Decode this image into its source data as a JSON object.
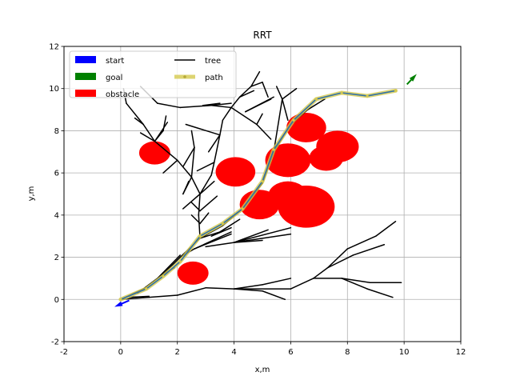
{
  "chart_data": {
    "type": "line",
    "title": "RRT",
    "xlabel": "x,m",
    "ylabel": "y,m",
    "xlim": [
      -2,
      12
    ],
    "ylim": [
      -2,
      12
    ],
    "xticks": [
      "-2",
      "0",
      "2",
      "4",
      "6",
      "8",
      "10",
      "12"
    ],
    "yticks": [
      "-2",
      "0",
      "2",
      "4",
      "6",
      "8",
      "10",
      "12"
    ],
    "grid": true,
    "legend": {
      "placement": "top-left",
      "entries": [
        {
          "name": "start",
          "color": "#0000ff",
          "kind": "patch"
        },
        {
          "name": "goal",
          "color": "#008000",
          "kind": "patch"
        },
        {
          "name": "obstacle",
          "color": "#ff0000",
          "kind": "patch"
        },
        {
          "name": "tree",
          "color": "#000000",
          "kind": "line"
        },
        {
          "name": "path",
          "color": "#d4c94e",
          "kind": "line"
        }
      ]
    },
    "start": {
      "x": 0.3,
      "y": -0.05,
      "heading_deg": 210,
      "color": "#0000ff"
    },
    "goal": {
      "x": 10.1,
      "y": 10.2,
      "heading_deg": 55,
      "color": "#008000"
    },
    "obstacles": [
      {
        "x": 1.2,
        "y": 6.95,
        "r": 0.55
      },
      {
        "x": 2.55,
        "y": 1.25,
        "r": 0.55
      },
      {
        "x": 4.05,
        "y": 6.05,
        "r": 0.7
      },
      {
        "x": 4.9,
        "y": 4.5,
        "r": 0.7
      },
      {
        "x": 5.9,
        "y": 6.6,
        "r": 0.8
      },
      {
        "x": 5.9,
        "y": 4.9,
        "r": 0.7
      },
      {
        "x": 6.55,
        "y": 8.15,
        "r": 0.7
      },
      {
        "x": 6.55,
        "y": 4.4,
        "r": 1.0
      },
      {
        "x": 7.25,
        "y": 6.7,
        "r": 0.6
      },
      {
        "x": 7.65,
        "y": 7.25,
        "r": 0.75
      }
    ],
    "obstacle_color": "#ff0000",
    "tree_color": "#000000",
    "tree_edges": [
      [
        [
          0,
          0
        ],
        [
          0.8,
          0.5
        ]
      ],
      [
        [
          0.8,
          0.5
        ],
        [
          1.5,
          1.2
        ]
      ],
      [
        [
          1.5,
          1.2
        ],
        [
          2.1,
          2.0
        ]
      ],
      [
        [
          2.1,
          2.0
        ],
        [
          2.8,
          2.9
        ]
      ],
      [
        [
          2.8,
          2.9
        ],
        [
          3.6,
          3.5
        ]
      ],
      [
        [
          3.6,
          3.5
        ],
        [
          4.3,
          4.3
        ]
      ],
      [
        [
          4.3,
          4.3
        ],
        [
          5.0,
          5.5
        ]
      ],
      [
        [
          5.0,
          5.5
        ],
        [
          5.4,
          7.0
        ]
      ],
      [
        [
          5.4,
          7.0
        ],
        [
          6.0,
          8.3
        ]
      ],
      [
        [
          6.0,
          8.3
        ],
        [
          6.6,
          9.0
        ]
      ],
      [
        [
          6.6,
          9.0
        ],
        [
          7.2,
          9.5
        ]
      ],
      [
        [
          0,
          0
        ],
        [
          1.0,
          0.1
        ]
      ],
      [
        [
          1.0,
          0.1
        ],
        [
          2.0,
          0.2
        ]
      ],
      [
        [
          2.0,
          0.2
        ],
        [
          3.0,
          0.55
        ]
      ],
      [
        [
          3.0,
          0.55
        ],
        [
          4.0,
          0.5
        ]
      ],
      [
        [
          4.0,
          0.5
        ],
        [
          5.0,
          0.4
        ]
      ],
      [
        [
          5.0,
          0.4
        ],
        [
          5.8,
          0.0
        ]
      ],
      [
        [
          4.0,
          0.5
        ],
        [
          5.0,
          0.7
        ]
      ],
      [
        [
          5.0,
          0.7
        ],
        [
          6.0,
          1.0
        ]
      ],
      [
        [
          4.0,
          0.5
        ],
        [
          6.0,
          0.5
        ]
      ],
      [
        [
          6.0,
          0.5
        ],
        [
          6.8,
          1.0
        ]
      ],
      [
        [
          6.8,
          1.0
        ],
        [
          7.3,
          1.5
        ]
      ],
      [
        [
          7.3,
          1.5
        ],
        [
          8.0,
          2.4
        ]
      ],
      [
        [
          8.0,
          2.4
        ],
        [
          9.0,
          3.0
        ]
      ],
      [
        [
          9.0,
          3.0
        ],
        [
          9.7,
          3.7
        ]
      ],
      [
        [
          7.3,
          1.5
        ],
        [
          8.2,
          2.1
        ]
      ],
      [
        [
          8.2,
          2.1
        ],
        [
          9.3,
          2.6
        ]
      ],
      [
        [
          6.8,
          1.0
        ],
        [
          7.8,
          1.0
        ]
      ],
      [
        [
          7.8,
          1.0
        ],
        [
          8.8,
          0.8
        ]
      ],
      [
        [
          8.8,
          0.8
        ],
        [
          9.9,
          0.8
        ]
      ],
      [
        [
          7.8,
          1.0
        ],
        [
          8.7,
          0.5
        ]
      ],
      [
        [
          8.7,
          0.5
        ],
        [
          9.6,
          0.1
        ]
      ],
      [
        [
          0.3,
          0.1
        ],
        [
          1.0,
          0.15
        ]
      ],
      [
        [
          2.8,
          2.9
        ],
        [
          3.5,
          3.2
        ]
      ],
      [
        [
          3.5,
          3.2
        ],
        [
          4.2,
          3.8
        ]
      ],
      [
        [
          3.0,
          2.5
        ],
        [
          4.0,
          2.7
        ]
      ],
      [
        [
          4.0,
          2.7
        ],
        [
          5.0,
          2.8
        ]
      ],
      [
        [
          4.0,
          2.7
        ],
        [
          5.2,
          3.3
        ]
      ],
      [
        [
          4.0,
          2.7
        ],
        [
          6.0,
          3.1
        ]
      ],
      [
        [
          4.0,
          2.7
        ],
        [
          6.0,
          3.4
        ]
      ],
      [
        [
          3.2,
          3.0
        ],
        [
          3.9,
          3.4
        ]
      ],
      [
        [
          0.6,
          0.3
        ],
        [
          1.3,
          1.0
        ]
      ],
      [
        [
          1.3,
          1.0
        ],
        [
          2.1,
          2.1
        ]
      ],
      [
        [
          2.8,
          2.9
        ],
        [
          2.75,
          4.0
        ]
      ],
      [
        [
          2.75,
          4.0
        ],
        [
          2.8,
          5.0
        ]
      ],
      [
        [
          2.8,
          5.0
        ],
        [
          2.5,
          5.8
        ]
      ],
      [
        [
          2.5,
          5.8
        ],
        [
          2.0,
          6.6
        ]
      ],
      [
        [
          2.0,
          6.6
        ],
        [
          1.2,
          7.5
        ]
      ],
      [
        [
          1.2,
          7.5
        ],
        [
          0.8,
          8.3
        ]
      ],
      [
        [
          0.8,
          8.3
        ],
        [
          0.2,
          9.3
        ]
      ],
      [
        [
          0.2,
          9.3
        ],
        [
          0.1,
          10.0
        ]
      ],
      [
        [
          1.2,
          7.5
        ],
        [
          0.7,
          7.9
        ]
      ],
      [
        [
          1.2,
          7.5
        ],
        [
          1.5,
          8.0
        ]
      ],
      [
        [
          2.5,
          5.8
        ],
        [
          2.2,
          5.0
        ]
      ],
      [
        [
          2.5,
          5.8
        ],
        [
          2.6,
          7.2
        ]
      ],
      [
        [
          2.8,
          5.0
        ],
        [
          3.3,
          5.6
        ]
      ],
      [
        [
          2.8,
          5.0
        ],
        [
          2.2,
          4.3
        ]
      ],
      [
        [
          2.8,
          4.2
        ],
        [
          3.4,
          4.9
        ]
      ],
      [
        [
          2.8,
          4.2
        ],
        [
          2.5,
          4.6
        ]
      ],
      [
        [
          2.8,
          5.0
        ],
        [
          3.2,
          5.9
        ]
      ],
      [
        [
          3.2,
          5.9
        ],
        [
          3.3,
          6.5
        ]
      ],
      [
        [
          3.3,
          6.5
        ],
        [
          3.5,
          7.8
        ]
      ],
      [
        [
          3.5,
          7.8
        ],
        [
          3.6,
          8.5
        ]
      ],
      [
        [
          3.6,
          8.5
        ],
        [
          3.9,
          9.1
        ]
      ],
      [
        [
          3.9,
          9.1
        ],
        [
          4.2,
          9.6
        ]
      ],
      [
        [
          4.2,
          9.6
        ],
        [
          4.6,
          10.1
        ]
      ],
      [
        [
          4.6,
          10.1
        ],
        [
          5.0,
          10.3
        ]
      ],
      [
        [
          3.9,
          9.1
        ],
        [
          3.2,
          9.2
        ]
      ],
      [
        [
          3.2,
          9.2
        ],
        [
          2.1,
          9.1
        ]
      ],
      [
        [
          2.1,
          9.1
        ],
        [
          1.3,
          9.3
        ]
      ],
      [
        [
          1.3,
          9.3
        ],
        [
          0.7,
          10.1
        ]
      ],
      [
        [
          3.9,
          9.1
        ],
        [
          4.8,
          8.3
        ]
      ],
      [
        [
          4.8,
          8.3
        ],
        [
          5.0,
          8.8
        ]
      ],
      [
        [
          4.8,
          8.3
        ],
        [
          5.3,
          7.6
        ]
      ],
      [
        [
          4.4,
          8.9
        ],
        [
          5.4,
          9.6
        ]
      ],
      [
        [
          4.4,
          8.9
        ],
        [
          5.3,
          9.5
        ]
      ],
      [
        [
          4.2,
          9.6
        ],
        [
          4.7,
          9.9
        ]
      ],
      [
        [
          4.6,
          10.1
        ],
        [
          4.9,
          10.8
        ]
      ],
      [
        [
          5.0,
          10.3
        ],
        [
          5.2,
          9.6
        ]
      ],
      [
        [
          5.4,
          7.0
        ],
        [
          5.7,
          9.5
        ]
      ],
      [
        [
          5.7,
          9.5
        ],
        [
          5.5,
          10.1
        ]
      ],
      [
        [
          5.7,
          9.5
        ],
        [
          6.2,
          10.0
        ]
      ],
      [
        [
          5.7,
          9.5
        ],
        [
          5.9,
          8.5
        ]
      ],
      [
        [
          3.5,
          7.8
        ],
        [
          2.3,
          8.3
        ]
      ],
      [
        [
          3.5,
          7.8
        ],
        [
          3.1,
          7.0
        ]
      ],
      [
        [
          3.3,
          6.5
        ],
        [
          2.7,
          6.1
        ]
      ],
      [
        [
          2.6,
          7.2
        ],
        [
          2.5,
          8.0
        ]
      ],
      [
        [
          2.6,
          7.2
        ],
        [
          2.2,
          6.3
        ]
      ],
      [
        [
          2.0,
          6.6
        ],
        [
          1.5,
          6.0
        ]
      ],
      [
        [
          1.2,
          7.5
        ],
        [
          1.65,
          8.4
        ]
      ],
      [
        [
          1.5,
          8.0
        ],
        [
          1.6,
          8.7
        ]
      ],
      [
        [
          0.8,
          8.3
        ],
        [
          0.5,
          8.6
        ]
      ],
      [
        [
          2.2,
          5.0
        ],
        [
          2.4,
          5.6
        ]
      ],
      [
        [
          2.8,
          3.6
        ],
        [
          2.5,
          4.0
        ]
      ],
      [
        [
          2.8,
          3.6
        ],
        [
          3.1,
          4.1
        ]
      ],
      [
        [
          2.1,
          2.0
        ],
        [
          2.6,
          2.4
        ]
      ],
      [
        [
          2.6,
          2.4
        ],
        [
          3.9,
          3.1
        ]
      ],
      [
        [
          2.6,
          2.4
        ],
        [
          3.9,
          3.2
        ]
      ],
      [
        [
          1.5,
          1.2
        ],
        [
          1.9,
          1.5
        ]
      ],
      [
        [
          2.9,
          9.2
        ],
        [
          3.5,
          9.3
        ]
      ],
      [
        [
          3.2,
          9.2
        ],
        [
          3.9,
          9.3
        ]
      ]
    ],
    "path_color": "#d4c94e",
    "path": [
      {
        "x": 0.0,
        "y": 0.0
      },
      {
        "x": 0.9,
        "y": 0.5
      },
      {
        "x": 1.5,
        "y": 1.1
      },
      {
        "x": 2.1,
        "y": 1.8
      },
      {
        "x": 2.8,
        "y": 3.0
      },
      {
        "x": 3.6,
        "y": 3.6
      },
      {
        "x": 4.3,
        "y": 4.3
      },
      {
        "x": 5.0,
        "y": 5.6
      },
      {
        "x": 5.4,
        "y": 7.1
      },
      {
        "x": 6.1,
        "y": 8.5
      },
      {
        "x": 6.9,
        "y": 9.5
      },
      {
        "x": 7.8,
        "y": 9.8
      },
      {
        "x": 8.7,
        "y": 9.65
      },
      {
        "x": 9.7,
        "y": 9.9
      }
    ],
    "path_inner_color": "#2f6fa8"
  }
}
